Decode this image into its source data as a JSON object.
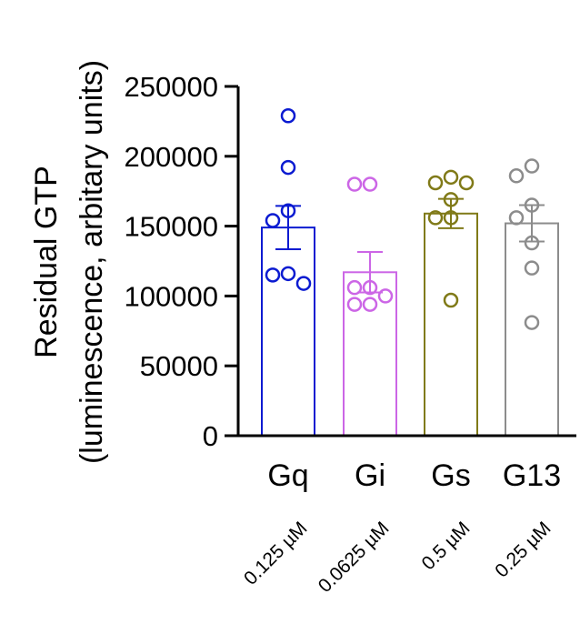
{
  "chart_data": {
    "type": "bar",
    "ylabel_line1": "Residual GTP",
    "ylabel_line2": "(luminescence, arbitary units)",
    "ylim": [
      0,
      250000
    ],
    "yticks": [
      0,
      50000,
      100000,
      150000,
      200000,
      250000
    ],
    "ytick_labels": [
      "0",
      "50000",
      "100000",
      "150000",
      "200000",
      "250000"
    ],
    "categories": [
      "Gq",
      "Gi",
      "Gs",
      "G13"
    ],
    "concentrations": [
      "0.125 µM",
      "0.0625 µM",
      "0.5 µM",
      "0.25 µM"
    ],
    "means": [
      149000,
      117000,
      159000,
      152000
    ],
    "sem": [
      15500,
      14500,
      10500,
      13000
    ],
    "points": [
      [
        229000,
        192000,
        161000,
        154000,
        116000,
        115000,
        109000
      ],
      [
        180000,
        180000,
        106000,
        106000,
        100000,
        94000,
        94000
      ],
      [
        185000,
        181000,
        181000,
        169000,
        156000,
        156000,
        97000
      ],
      [
        186000,
        193000,
        165000,
        156000,
        138000,
        120000,
        81000
      ]
    ],
    "colors": [
      "#0b1bd1",
      "#cc66e6",
      "#807a18",
      "#8c8c8c"
    ]
  }
}
